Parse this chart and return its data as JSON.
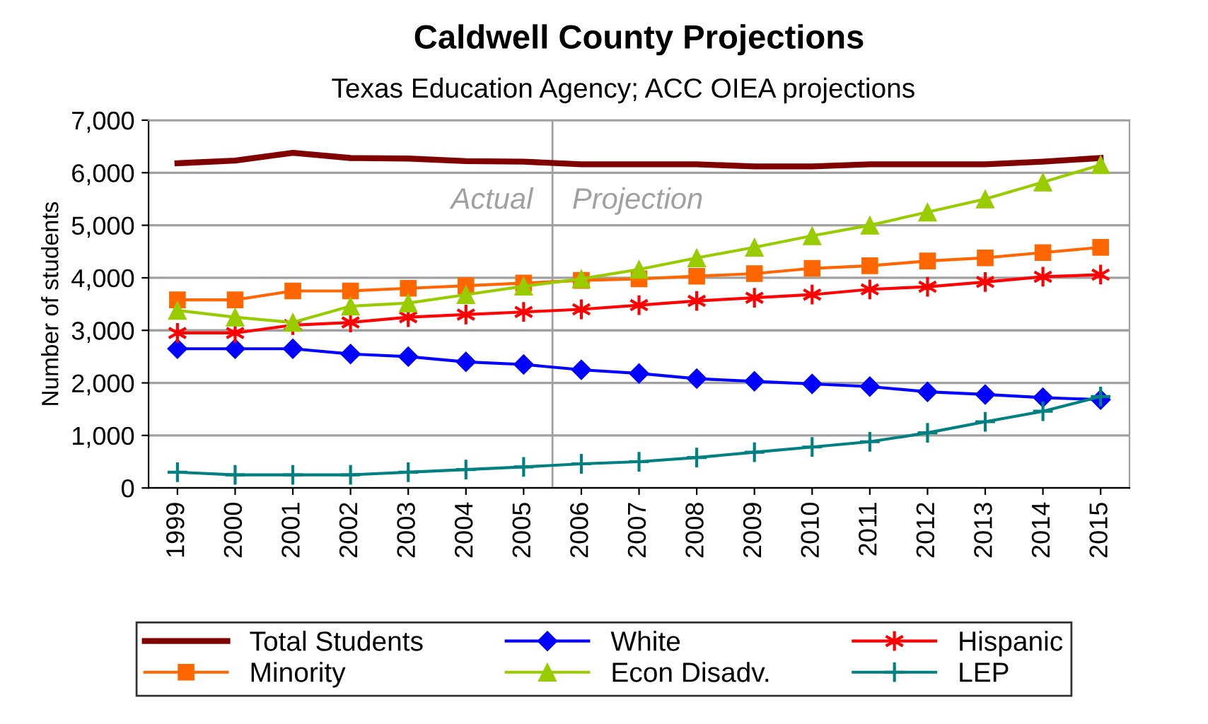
{
  "chart_data": {
    "type": "line",
    "title": "Caldwell County Projections",
    "subtitle": "Texas Education Agency; ACC OIEA projections",
    "ylabel": "Number of students",
    "x": [
      1999,
      2000,
      2001,
      2002,
      2003,
      2004,
      2005,
      2006,
      2007,
      2008,
      2009,
      2010,
      2011,
      2012,
      2013,
      2014,
      2015
    ],
    "xlim": [
      1998.5,
      2015.5
    ],
    "xticks": [
      1999,
      2000,
      2001,
      2002,
      2003,
      2004,
      2005,
      2006,
      2007,
      2008,
      2009,
      2010,
      2011,
      2012,
      2013,
      2014,
      2015
    ],
    "ylim": [
      0,
      7000
    ],
    "yticks": [
      {
        "value": 0,
        "label": "0"
      },
      {
        "value": 1000,
        "label": "1,000"
      },
      {
        "value": 2000,
        "label": "2,000"
      },
      {
        "value": 3000,
        "label": "3,000"
      },
      {
        "value": 4000,
        "label": "4,000"
      },
      {
        "value": 5000,
        "label": "5,000"
      },
      {
        "value": 6000,
        "label": "6,000"
      },
      {
        "value": 7000,
        "label": "7,000"
      }
    ],
    "grid": "y",
    "legend": "bottom",
    "series": [
      {
        "name": "Total Students",
        "color": "#800000",
        "marker": "none",
        "values": [
          6180,
          6230,
          6380,
          6280,
          6270,
          6220,
          6210,
          6160,
          6160,
          6160,
          6120,
          6120,
          6160,
          6160,
          6160,
          6210,
          6280
        ]
      },
      {
        "name": "White",
        "color": "#0000ff",
        "marker": "diamond",
        "values": [
          2650,
          2650,
          2650,
          2550,
          2500,
          2400,
          2350,
          2250,
          2180,
          2080,
          2030,
          1980,
          1930,
          1830,
          1780,
          1720,
          1680
        ]
      },
      {
        "name": "Hispanic",
        "color": "#ff0000",
        "marker": "cross",
        "values": [
          2950,
          2950,
          3100,
          3150,
          3250,
          3300,
          3350,
          3400,
          3480,
          3560,
          3620,
          3680,
          3780,
          3830,
          3920,
          4020,
          4060
        ]
      },
      {
        "name": "Minority",
        "color": "#ff6600",
        "marker": "square",
        "values": [
          3580,
          3580,
          3750,
          3750,
          3800,
          3850,
          3900,
          3950,
          3980,
          4030,
          4080,
          4180,
          4230,
          4320,
          4380,
          4480,
          4580
        ]
      },
      {
        "name": "Econ Disadv.",
        "color": "#99cc00",
        "marker": "triangle",
        "values": [
          3380,
          3250,
          3150,
          3460,
          3520,
          3680,
          3840,
          3980,
          4160,
          4380,
          4580,
          4800,
          5000,
          5250,
          5500,
          5820,
          6150
        ]
      },
      {
        "name": "LEP",
        "color": "#008080",
        "marker": "cross",
        "values": [
          300,
          250,
          250,
          250,
          300,
          350,
          400,
          460,
          500,
          580,
          680,
          780,
          880,
          1050,
          1260,
          1460,
          1740
        ]
      }
    ],
    "ref_lines": [
      {
        "axis": "x",
        "value": 2005.5,
        "color": "#a0a0a0"
      }
    ],
    "annotations": [
      "Actual",
      "Projection"
    ]
  }
}
